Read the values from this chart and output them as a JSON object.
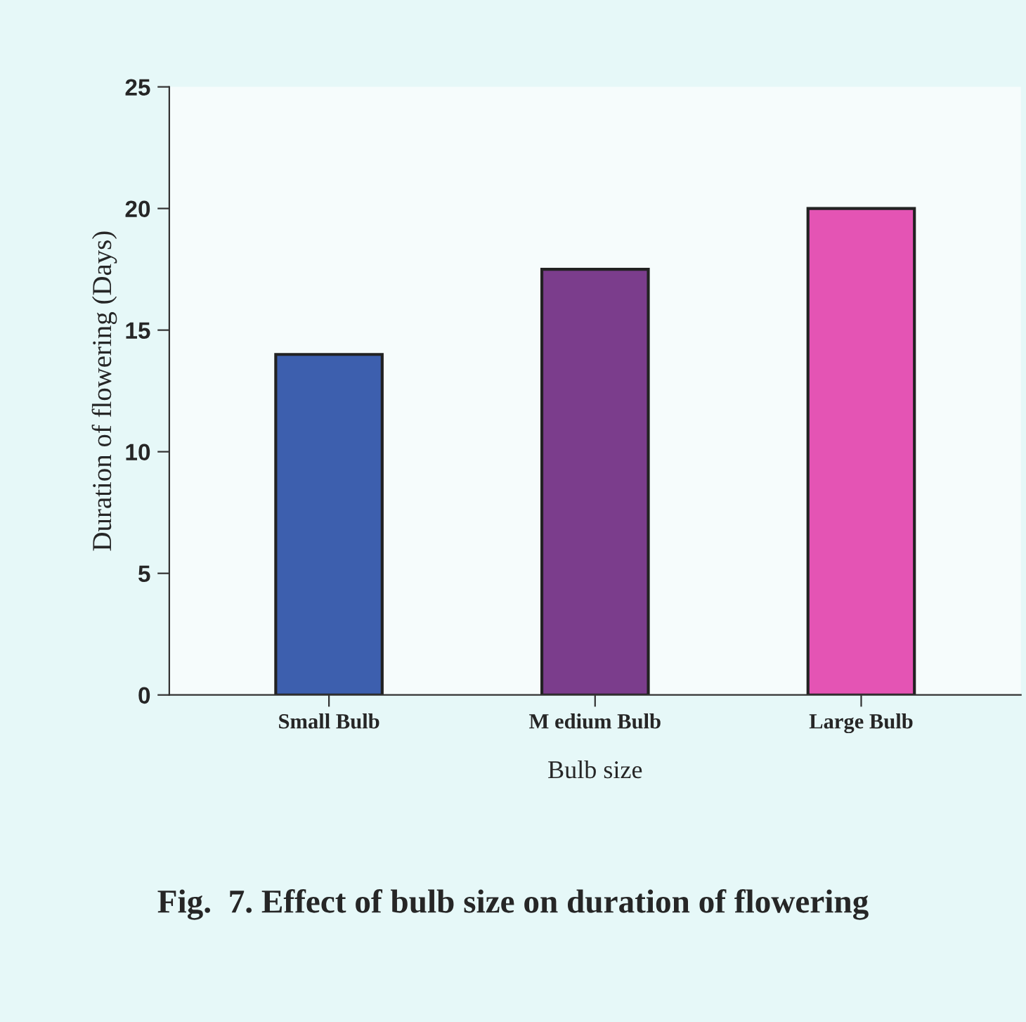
{
  "chart_data": {
    "type": "bar",
    "title": "Fig.  7. Effect of bulb size on duration of flowering",
    "xlabel": "Bulb size",
    "ylabel": "Duration of flowering (Days)",
    "categories": [
      "Small Bulb",
      "M edium Bulb",
      "Large Bulb"
    ],
    "values": [
      14,
      17.5,
      20
    ],
    "colors": [
      "#3d5fae",
      "#7b3d8c",
      "#e454b4"
    ],
    "ylim": [
      0,
      25
    ],
    "yticks": [
      0,
      5,
      10,
      15,
      20,
      25
    ],
    "grid": false,
    "legend": false
  }
}
